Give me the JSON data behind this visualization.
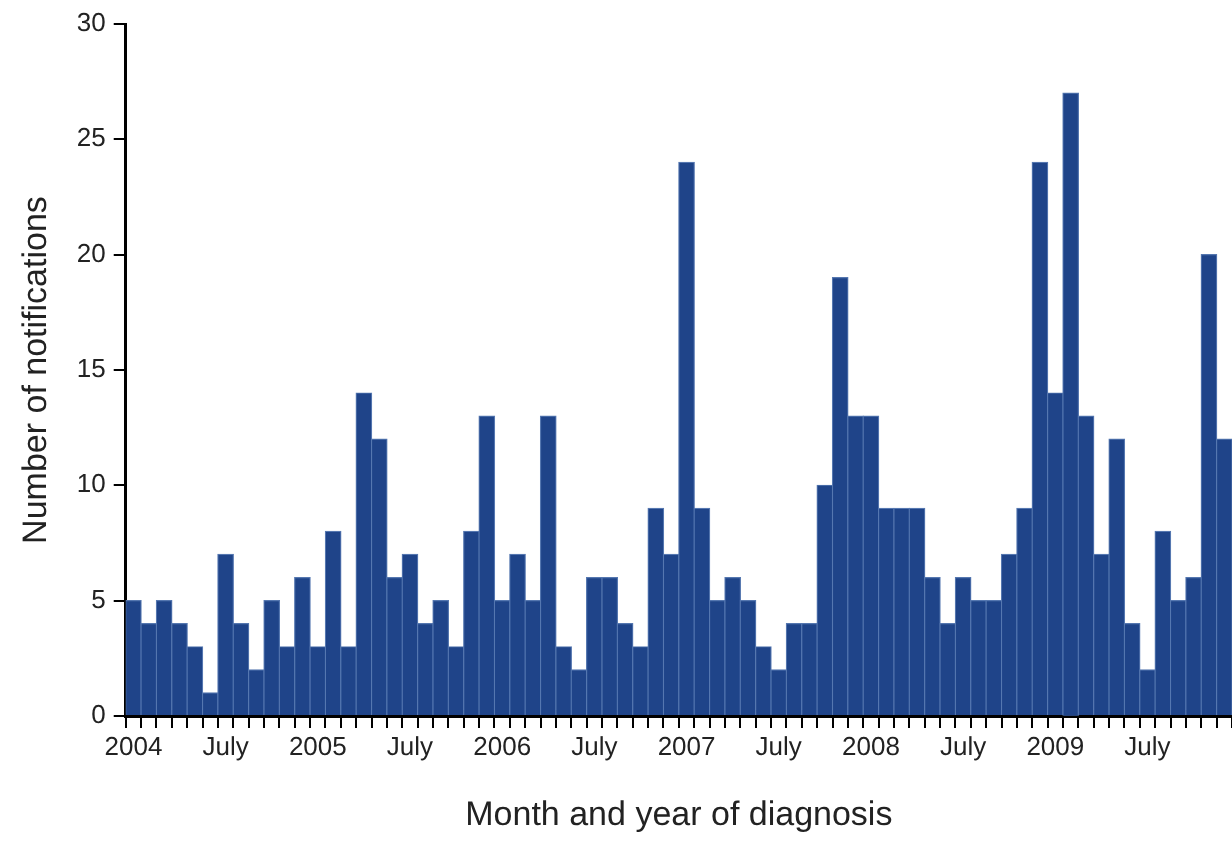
{
  "chart_data": {
    "type": "bar",
    "xlabel": "Month and year of diagnosis",
    "ylabel": "Number of notifications",
    "categories": [
      "2004",
      null,
      null,
      null,
      null,
      null,
      "July",
      null,
      null,
      null,
      null,
      null,
      "2005",
      null,
      null,
      null,
      null,
      null,
      "July",
      null,
      null,
      null,
      null,
      null,
      "2006",
      null,
      null,
      null,
      null,
      null,
      "July",
      null,
      null,
      null,
      null,
      null,
      "2007",
      null,
      null,
      null,
      null,
      null,
      "July",
      null,
      null,
      null,
      null,
      null,
      "2008",
      null,
      null,
      null,
      null,
      null,
      "July",
      null,
      null,
      null,
      null,
      null,
      "2009",
      null,
      null,
      null,
      null,
      null,
      "July",
      null,
      null,
      null,
      null,
      null
    ],
    "values": [
      5,
      4,
      5,
      4,
      3,
      1,
      7,
      4,
      2,
      5,
      3,
      6,
      3,
      8,
      3,
      14,
      12,
      6,
      7,
      4,
      5,
      3,
      8,
      13,
      5,
      7,
      5,
      13,
      3,
      2,
      6,
      6,
      4,
      3,
      9,
      7,
      24,
      9,
      5,
      6,
      5,
      3,
      2,
      4,
      4,
      10,
      19,
      13,
      13,
      9,
      9,
      9,
      6,
      4,
      6,
      5,
      5,
      7,
      9,
      24,
      14,
      27,
      13,
      7,
      12,
      4,
      2,
      8,
      5,
      6,
      20,
      12
    ],
    "color": "#1f4489",
    "ylim": [
      0,
      30
    ],
    "yticks": [
      0,
      5,
      10,
      15,
      20,
      25,
      30
    ],
    "grid": false
  }
}
